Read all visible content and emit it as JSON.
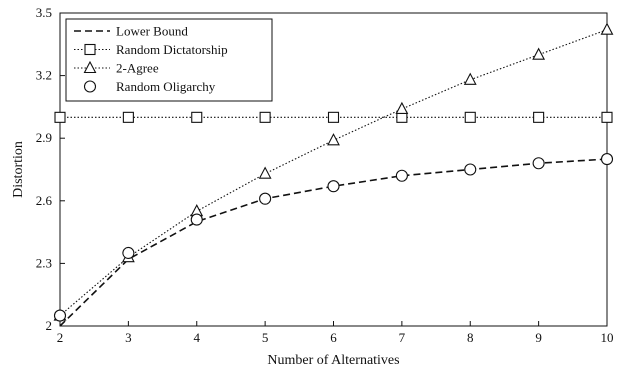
{
  "chart_data": {
    "type": "line",
    "xlabel": "Number of Alternatives",
    "ylabel": "Distortion",
    "xlim": [
      2,
      10
    ],
    "ylim": [
      2,
      3.5
    ],
    "x_ticks": [
      "2",
      "3",
      "4",
      "5",
      "6",
      "7",
      "8",
      "9",
      "10"
    ],
    "y_ticks": [
      "2",
      "2.3",
      "2.6",
      "2.9",
      "3.2",
      "3.5"
    ],
    "grid": false,
    "legend_position": "top-left",
    "series": [
      {
        "name": "Lower Bound",
        "line": "dashed",
        "marker": "none",
        "x": [
          2,
          3,
          4,
          5,
          6,
          7,
          8,
          9,
          10
        ],
        "values": [
          2.0,
          2.32,
          2.5,
          2.61,
          2.67,
          2.72,
          2.75,
          2.78,
          2.8
        ]
      },
      {
        "name": "Random Dictatorship",
        "line": "dotted",
        "marker": "square",
        "x": [
          2,
          3,
          4,
          5,
          6,
          7,
          8,
          9,
          10
        ],
        "values": [
          3.0,
          3.0,
          3.0,
          3.0,
          3.0,
          3.0,
          3.0,
          3.0,
          3.0
        ]
      },
      {
        "name": "2-Agree",
        "line": "dotted",
        "marker": "triangle",
        "x": [
          2,
          3,
          4,
          5,
          6,
          7,
          8,
          9,
          10
        ],
        "values": [
          2.05,
          2.33,
          2.55,
          2.73,
          2.89,
          3.04,
          3.18,
          3.3,
          3.42
        ]
      },
      {
        "name": "Random Oligarchy",
        "line": "none",
        "marker": "circle",
        "x": [
          2,
          3,
          4,
          5,
          6,
          7,
          8,
          9,
          10
        ],
        "values": [
          2.05,
          2.35,
          2.51,
          2.61,
          2.67,
          2.72,
          2.75,
          2.78,
          2.8
        ]
      }
    ]
  }
}
